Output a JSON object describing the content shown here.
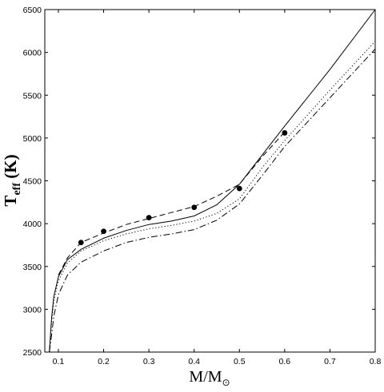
{
  "chart_data": {
    "type": "line",
    "xlabel": {
      "main": "M/M",
      "subscript": "⊙"
    },
    "ylabel": {
      "main": "T",
      "subscript": "eff",
      "suffix": " (K)"
    },
    "xlim": [
      0.07,
      0.8
    ],
    "ylim": [
      2500,
      6500
    ],
    "x_ticks": [
      0.1,
      0.2,
      0.3,
      0.4,
      0.5,
      0.6,
      0.7,
      0.8
    ],
    "x_tick_labels": [
      "0.1",
      "0.2",
      "0.3",
      "0.4",
      "0.5",
      "0.6",
      "0.7",
      "0.8"
    ],
    "y_ticks": [
      2500,
      3000,
      3500,
      4000,
      4500,
      5000,
      5500,
      6000,
      6500
    ],
    "y_tick_labels": [
      "2500",
      "3000",
      "3500",
      "4000",
      "4500",
      "5000",
      "5500",
      "6000",
      "6500"
    ],
    "grid": false,
    "series": [
      {
        "style": "solid",
        "x": [
          0.08,
          0.085,
          0.09,
          0.1,
          0.12,
          0.15,
          0.2,
          0.25,
          0.3,
          0.35,
          0.4,
          0.45,
          0.5,
          0.55,
          0.6,
          0.7,
          0.8
        ],
        "y": [
          2500,
          2900,
          3150,
          3380,
          3580,
          3700,
          3830,
          3920,
          3990,
          4030,
          4090,
          4220,
          4460,
          4800,
          5140,
          5800,
          6500
        ]
      },
      {
        "style": "dashed",
        "x": [
          0.1,
          0.12,
          0.15,
          0.2,
          0.25,
          0.3,
          0.35,
          0.4,
          0.45,
          0.5,
          0.55,
          0.6
        ],
        "y": [
          3400,
          3600,
          3780,
          3890,
          3990,
          4060,
          4130,
          4200,
          4320,
          4460,
          4780,
          5070
        ]
      },
      {
        "style": "dotted",
        "x": [
          0.08,
          0.085,
          0.09,
          0.1,
          0.12,
          0.15,
          0.2,
          0.25,
          0.3,
          0.35,
          0.4,
          0.45,
          0.5,
          0.55,
          0.6,
          0.7,
          0.8
        ],
        "y": [
          2500,
          2850,
          3100,
          3330,
          3540,
          3680,
          3800,
          3880,
          3940,
          3980,
          4030,
          4120,
          4290,
          4650,
          4970,
          5560,
          6130
        ]
      },
      {
        "style": "dashdot",
        "x": [
          0.08,
          0.085,
          0.09,
          0.1,
          0.12,
          0.15,
          0.2,
          0.25,
          0.3,
          0.35,
          0.4,
          0.45,
          0.5,
          0.55,
          0.6,
          0.7,
          0.8
        ],
        "y": [
          2500,
          2700,
          2920,
          3170,
          3400,
          3550,
          3680,
          3780,
          3840,
          3880,
          3930,
          4040,
          4230,
          4560,
          4900,
          5470,
          6040
        ]
      }
    ],
    "points": {
      "marker": "filled-circle",
      "x": [
        0.15,
        0.2,
        0.3,
        0.4,
        0.5,
        0.6
      ],
      "y": [
        3780,
        3910,
        4070,
        4190,
        4410,
        5060
      ]
    }
  }
}
